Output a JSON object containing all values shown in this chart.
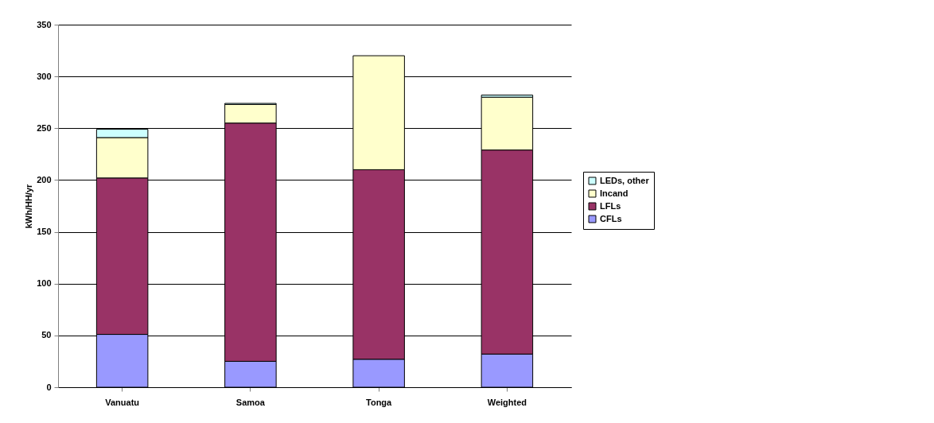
{
  "chart_data": {
    "type": "bar",
    "stacked": true,
    "ylabel": "kWh/HH/yr",
    "categories": [
      "Vanuatu",
      "Samoa",
      "Tonga",
      "Weighted"
    ],
    "series": [
      {
        "name": "CFLs",
        "color": "#9999ff",
        "values": [
          51,
          25,
          27,
          32
        ]
      },
      {
        "name": "LFLs",
        "color": "#993366",
        "values": [
          151,
          230,
          183,
          197
        ]
      },
      {
        "name": "Incand",
        "color": "#ffffcc",
        "values": [
          39,
          18,
          110,
          51
        ]
      },
      {
        "name": "LEDs, other",
        "color": "#ccffff",
        "values": [
          8,
          1,
          null,
          2
        ]
      }
    ],
    "ylim": [
      0,
      350
    ],
    "yticks": [
      0,
      50,
      100,
      150,
      200,
      250,
      300,
      350
    ],
    "grid": "y",
    "legend": "right"
  }
}
